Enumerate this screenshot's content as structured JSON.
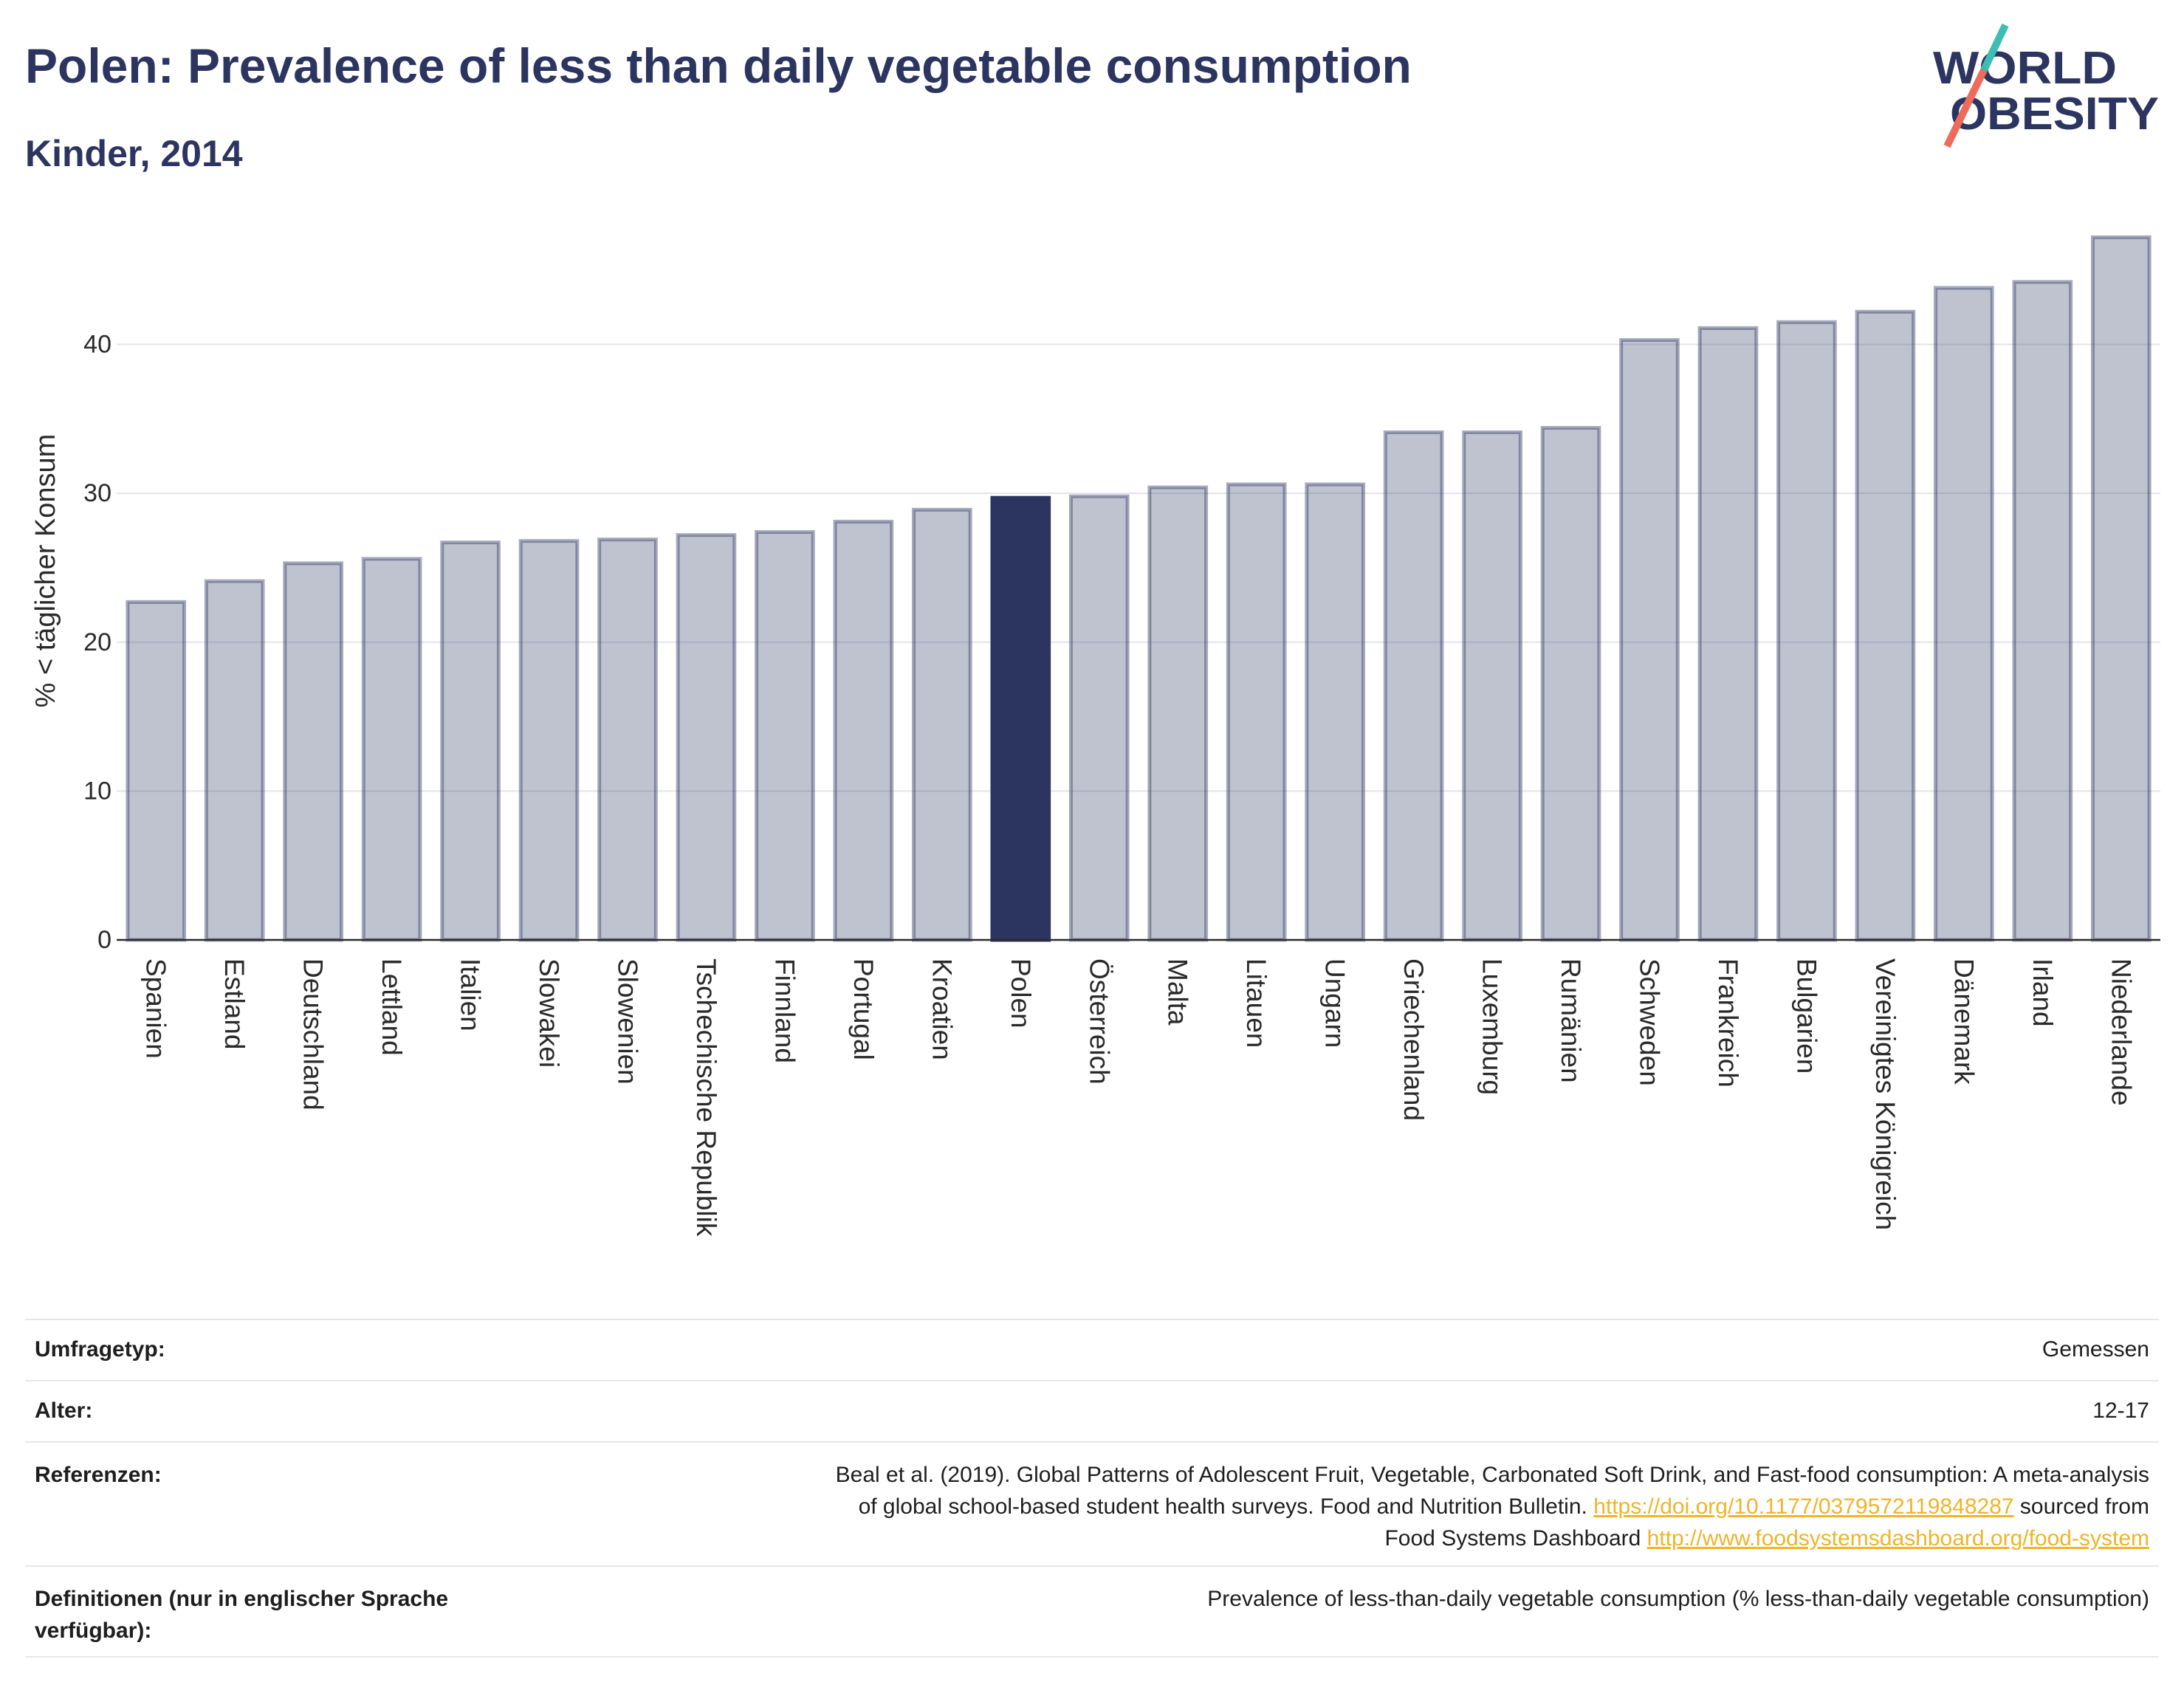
{
  "header": {
    "title": "Polen: Prevalence of less than daily vegetable consumption",
    "subtitle": "Kinder, 2014"
  },
  "logo": {
    "line1": "WORLD",
    "line2": "OBESITY"
  },
  "colors": {
    "title": "#2b3560",
    "bar": "#2b3560",
    "gridline": "#e4e5eb",
    "axis": "#2a2a2a",
    "link": "#f0b429",
    "logo_text": "#2b3560",
    "logo_teal": "#3dbdb3",
    "logo_coral": "#ee6b5b"
  },
  "chart_data": {
    "type": "bar",
    "ylabel": "% < täglicher Konsum",
    "categories": [
      "Spanien",
      "Estland",
      "Deutschland",
      "Lettland",
      "Italien",
      "Slowakei",
      "Slowenien",
      "Tschechische Republik",
      "Finnland",
      "Portugal",
      "Kroatien",
      "Polen",
      "Österreich",
      "Malta",
      "Litauen",
      "Ungarn",
      "Griechenland",
      "Luxemburg",
      "Rumänien",
      "Schweden",
      "Frankreich",
      "Bulgarien",
      "Vereinigtes Königreich",
      "Dänemark",
      "Irland",
      "Niederlande"
    ],
    "values": [
      22.7,
      24.1,
      25.3,
      25.6,
      26.7,
      26.8,
      26.9,
      27.2,
      27.4,
      28.1,
      28.9,
      29.7,
      29.8,
      30.4,
      30.6,
      30.6,
      34.1,
      34.1,
      34.4,
      40.3,
      41.1,
      41.5,
      42.2,
      43.8,
      44.2,
      47.2
    ],
    "highlighted": [
      false,
      false,
      false,
      false,
      false,
      false,
      false,
      false,
      false,
      false,
      false,
      true,
      false,
      false,
      false,
      false,
      false,
      false,
      false,
      false,
      false,
      false,
      false,
      false,
      false,
      false
    ],
    "ylim": [
      0,
      49.5
    ],
    "yticks": [
      0,
      10,
      20,
      30,
      40
    ],
    "grid": true
  },
  "details": {
    "survey_type_label": "Umfragetyp:",
    "survey_type_value": "Gemessen",
    "age_label": "Alter:",
    "age_value": "12-17",
    "references_label": "Referenzen:",
    "references": {
      "line1": "Beal et al. (2019). Global Patterns of Adolescent Fruit, Vegetable, Carbonated Soft Drink, and Fast-food consumption: A meta-analysis",
      "line2": "of global school-based student health surveys. Food and Nutrition Bulletin.",
      "doi_link": "https://doi.org/10.1177/0379572119848287",
      "line2_end": "sourced from",
      "line3": "Food Systems Dashboard",
      "dashboard_link": "http://www.foodsystemsdashboard.org/food-system"
    },
    "definitions_label": "Definitionen (nur in englischer Sprache verfügbar):",
    "definitions_value": "Prevalence of less-than-daily vegetable consumption (% less-than-daily vegetable consumption)"
  }
}
